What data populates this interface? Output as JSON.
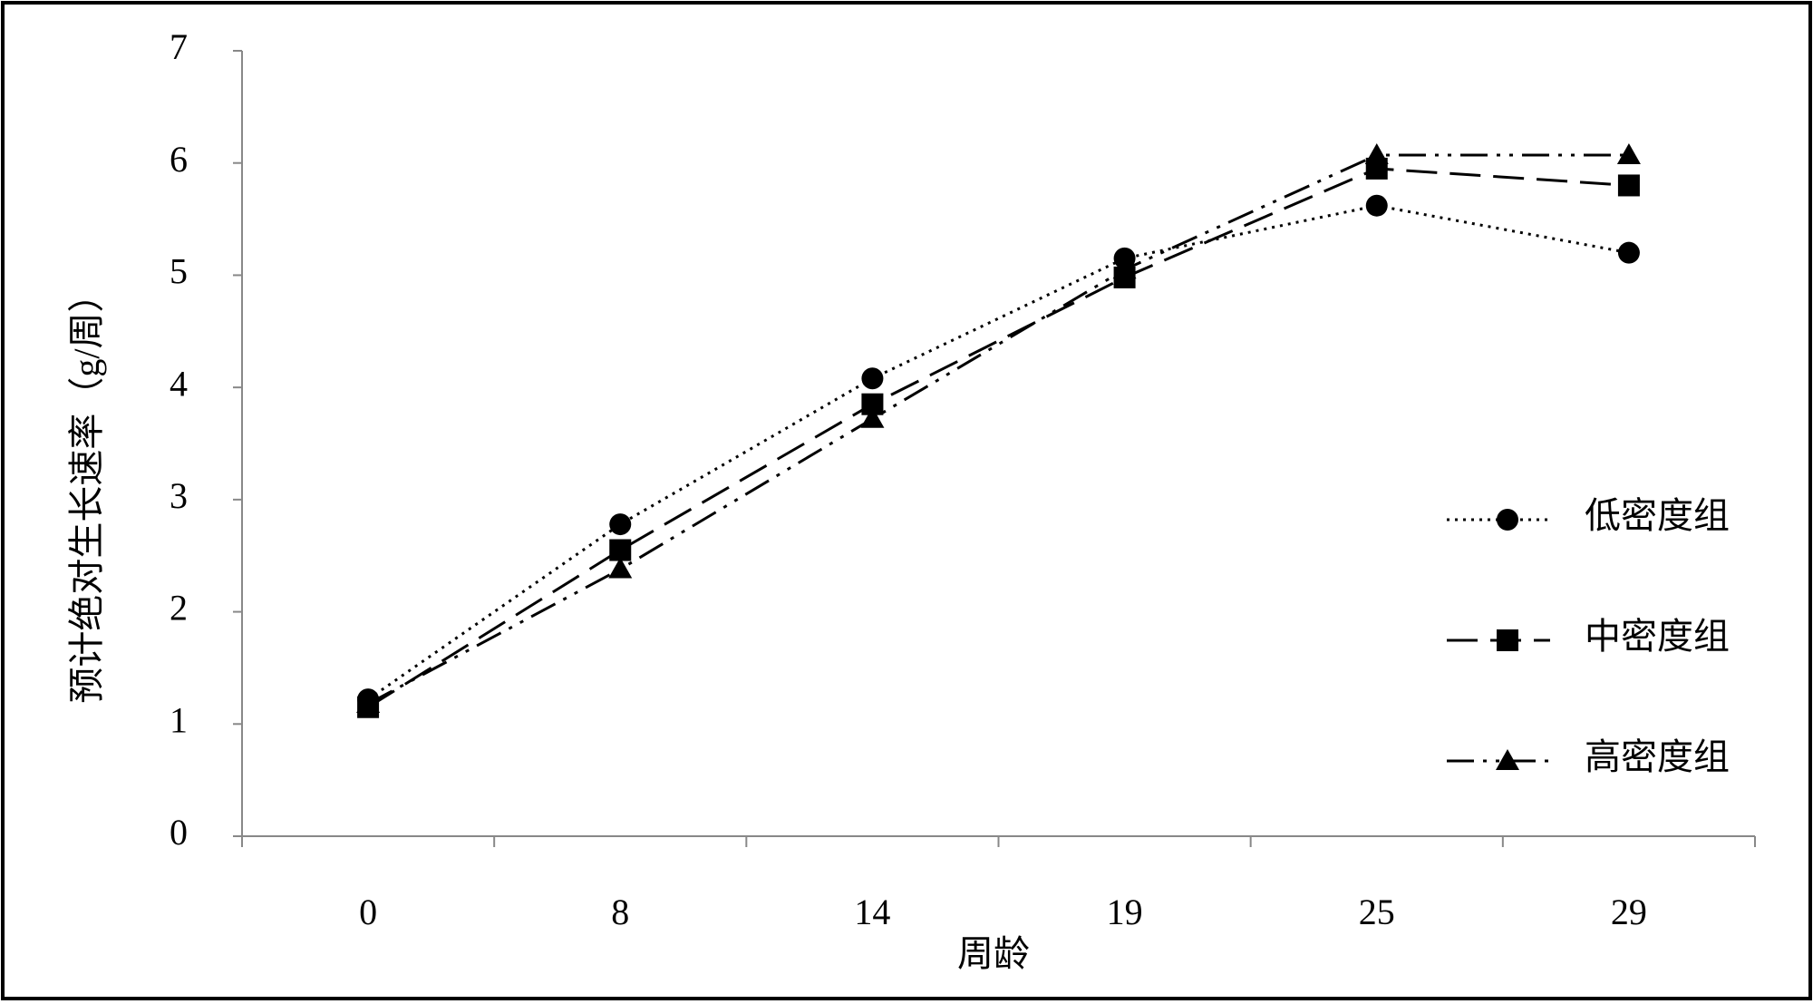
{
  "chart_data": {
    "type": "line",
    "x_label": "周龄",
    "y_label": "预计绝对生长速率（g/周）",
    "categories": [
      "0",
      "8",
      "14",
      "19",
      "25",
      "29"
    ],
    "series": [
      {
        "name": "低密度组",
        "color": "#000000",
        "line_style": "dotted",
        "marker": "circle",
        "values": [
          1.22,
          2.78,
          4.08,
          5.15,
          5.62,
          5.2
        ]
      },
      {
        "name": "中密度组",
        "color": "#000000",
        "line_style": "dashed",
        "marker": "square",
        "values": [
          1.15,
          2.55,
          3.85,
          4.98,
          5.95,
          5.8
        ]
      },
      {
        "name": "高密度组",
        "color": "#000000",
        "line_style": "dash-dot-dot",
        "marker": "triangle",
        "values": [
          1.18,
          2.38,
          3.72,
          5.05,
          6.07,
          6.07
        ]
      }
    ],
    "ylim": [
      0,
      7
    ],
    "yticks": [
      0,
      1,
      2,
      3,
      4,
      5,
      6,
      7
    ],
    "grid": false,
    "legend": "right"
  }
}
